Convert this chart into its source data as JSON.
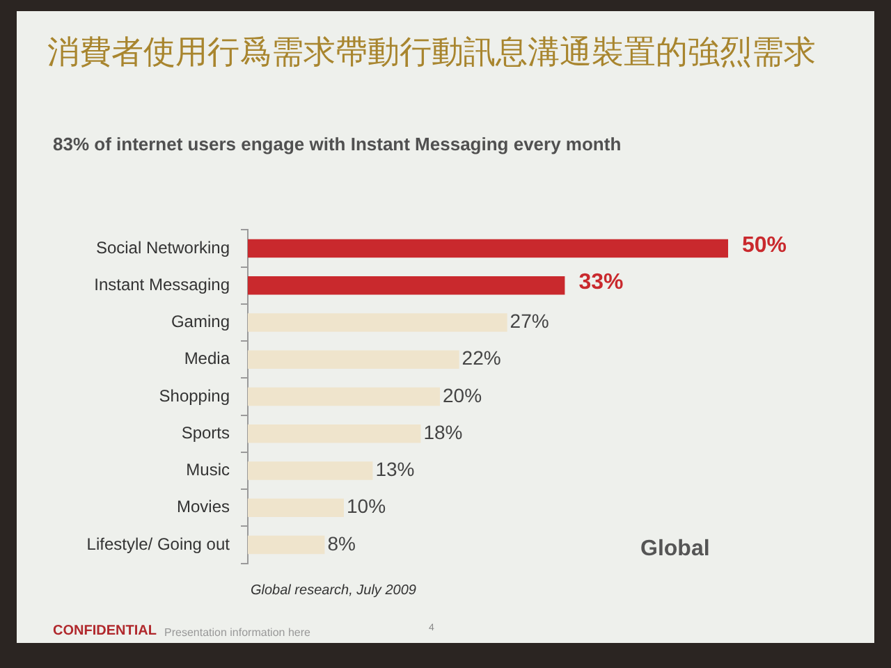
{
  "chart_data": {
    "type": "bar",
    "orientation": "horizontal",
    "title": "消費者使用行爲需求帶動行動訊息溝通裝置的強烈需求",
    "subtitle": "83% of internet users engage with Instant Messaging every month",
    "categories": [
      "Social Networking",
      "Instant Messaging",
      "Gaming",
      "Media",
      "Shopping",
      "Sports",
      "Music",
      "Movies",
      "Lifestyle/ Going out"
    ],
    "values": [
      50,
      33,
      27,
      22,
      20,
      18,
      13,
      10,
      8
    ],
    "colors": [
      "#c9292d",
      "#c9292d",
      "#efe4cc",
      "#efe4cc",
      "#efe4cc",
      "#efe4cc",
      "#efe4cc",
      "#efe4cc",
      "#efe4cc"
    ],
    "value_labels": [
      "50%",
      "33%",
      "27%",
      "22%",
      "20%",
      "18%",
      "13%",
      "10%",
      "8%"
    ],
    "tick_labels": "y",
    "annotations": [
      "Global",
      "Global research, July 2009",
      "CONFIDENTIAL",
      "Presentation information here",
      "4"
    ]
  }
}
